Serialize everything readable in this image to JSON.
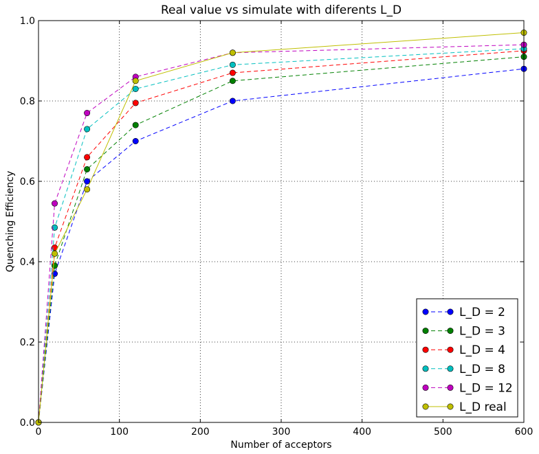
{
  "chart_data": {
    "type": "line",
    "title": "Real value vs simulate with diferents L_D",
    "xlabel": "Number of acceptors",
    "ylabel": "Quenching Efficiency",
    "xlim": [
      0,
      600
    ],
    "ylim": [
      0.0,
      1.0
    ],
    "xticks": [
      0,
      100,
      200,
      300,
      400,
      500,
      600
    ],
    "yticks": [
      0.0,
      0.2,
      0.4,
      0.6,
      0.8,
      1.0
    ],
    "xtick_labels": [
      "0",
      "100",
      "200",
      "300",
      "400",
      "500",
      "600"
    ],
    "ytick_labels": [
      "0.0",
      "0.2",
      "0.4",
      "0.6",
      "0.8",
      "1.0"
    ],
    "grid": true,
    "legend_position": "lower-right",
    "x": [
      0,
      20,
      60,
      120,
      240,
      600
    ],
    "series": [
      {
        "name": "L_D = 2",
        "color": "#0000ff",
        "style": "dashed",
        "values": [
          0.0,
          0.37,
          0.6,
          0.7,
          0.8,
          0.88
        ]
      },
      {
        "name": "L_D = 3",
        "color": "#008000",
        "style": "dashed",
        "values": [
          0.0,
          0.39,
          0.63,
          0.74,
          0.85,
          0.91
        ]
      },
      {
        "name": "L_D = 4",
        "color": "#ff0000",
        "style": "dashed",
        "values": [
          0.0,
          0.435,
          0.66,
          0.795,
          0.87,
          0.925
        ]
      },
      {
        "name": "L_D = 8",
        "color": "#00bfbf",
        "style": "dashed",
        "values": [
          0.0,
          0.485,
          0.73,
          0.83,
          0.89,
          0.93
        ]
      },
      {
        "name": "L_D = 12",
        "color": "#bf00bf",
        "style": "dashed",
        "values": [
          0.0,
          0.545,
          0.77,
          0.86,
          0.92,
          0.94
        ]
      },
      {
        "name": "L_D real",
        "color": "#bfbf00",
        "style": "solid",
        "values": [
          0.0,
          0.42,
          0.58,
          0.85,
          0.92,
          0.97
        ]
      }
    ]
  }
}
